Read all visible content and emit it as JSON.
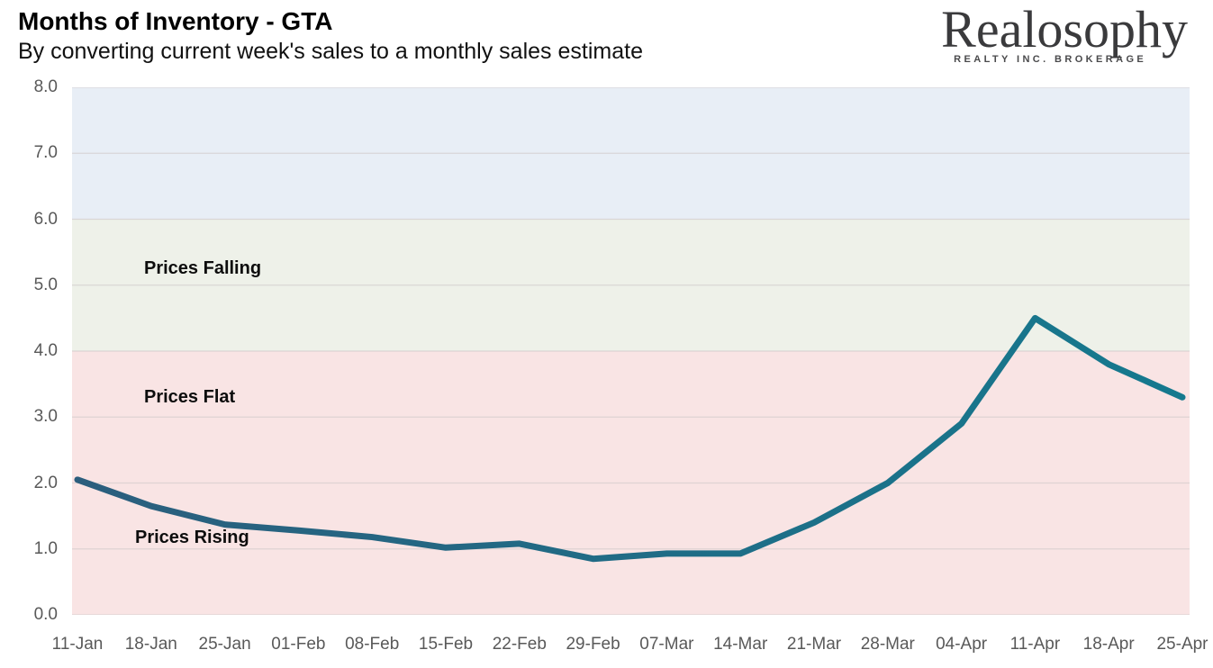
{
  "logo": {
    "brand": "Realosophy",
    "tagline": "REALTY INC. BROKERAGE"
  },
  "chart_data": {
    "type": "line",
    "title": "Months of Inventory - GTA",
    "subtitle": "By converting current week's sales to a monthly sales estimate",
    "x": [
      "11-Jan",
      "18-Jan",
      "25-Jan",
      "01-Feb",
      "08-Feb",
      "15-Feb",
      "22-Feb",
      "29-Feb",
      "07-Mar",
      "14-Mar",
      "21-Mar",
      "28-Mar",
      "04-Apr",
      "11-Apr",
      "18-Apr",
      "25-Apr"
    ],
    "series": [
      {
        "name": "Months of Inventory",
        "values": [
          2.05,
          1.65,
          1.37,
          1.28,
          1.18,
          1.02,
          1.08,
          0.85,
          0.93,
          0.93,
          1.4,
          2.0,
          2.9,
          4.5,
          3.8,
          3.3
        ]
      }
    ],
    "ylim": [
      0,
      8
    ],
    "yticks": [
      "0.0",
      "1.0",
      "2.0",
      "3.0",
      "4.0",
      "5.0",
      "6.0",
      "7.0",
      "8.0"
    ],
    "grid": true,
    "legend": "none",
    "bands": [
      {
        "label": "Prices Falling",
        "from": 6,
        "to": 8,
        "color": "#e8eef6"
      },
      {
        "label": "Prices Flat",
        "from": 4,
        "to": 6,
        "color": "#eef1e9"
      },
      {
        "label": "Prices Rising",
        "from": 0,
        "to": 4,
        "color": "#f9e4e4"
      }
    ],
    "line_color_start": "#2b5e7d",
    "line_color_end": "#15798e",
    "gridline_color": "#d0caca",
    "axis_label_color": "#595959"
  }
}
